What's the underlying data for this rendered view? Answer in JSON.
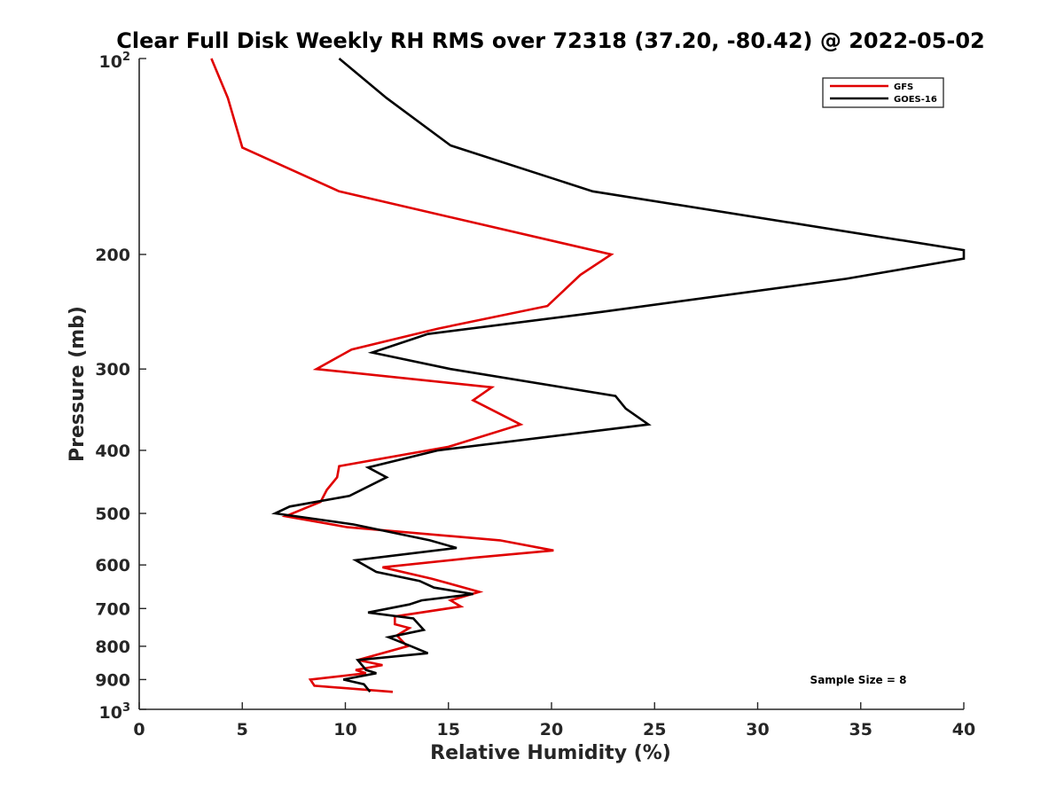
{
  "chart_data": {
    "type": "line",
    "title": "Clear Full Disk Weekly RH RMS over 72318 (37.20, -80.42) @ 2022-05-02",
    "xlabel": "Relative Humidity (%)",
    "ylabel": "Pressure (mb)",
    "xlim": [
      0,
      40
    ],
    "ylim": [
      100,
      1000
    ],
    "yscale": "log",
    "y_reversed": true,
    "grid": false,
    "legend_position": "top-right",
    "xticks": [
      0,
      5,
      10,
      15,
      20,
      25,
      30,
      35,
      40
    ],
    "xtick_labels": [
      "0",
      "5",
      "10",
      "15",
      "20",
      "25",
      "30",
      "35",
      "40"
    ],
    "yticks": [
      200,
      300,
      400,
      500,
      600,
      700,
      800,
      900
    ],
    "ytick_labels": [
      "200",
      "300",
      "400",
      "500",
      "600",
      "700",
      "800",
      "900"
    ],
    "ylim_labels": {
      "top": {
        "base": "10",
        "exp": "2"
      },
      "bottom": {
        "base": "10",
        "exp": "3"
      }
    },
    "annotation": "Sample Size = 8",
    "series": [
      {
        "name": "GFS",
        "color": "#e00000",
        "points": [
          [
            3.5,
            100
          ],
          [
            4.3,
            115
          ],
          [
            5.0,
            137
          ],
          [
            9.7,
            160
          ],
          [
            22.9,
            200
          ],
          [
            21.4,
            215
          ],
          [
            19.8,
            240
          ],
          [
            14.5,
            260
          ],
          [
            10.3,
            280
          ],
          [
            8.6,
            300
          ],
          [
            17.1,
            320
          ],
          [
            16.2,
            335
          ],
          [
            18.5,
            365
          ],
          [
            15.0,
            395
          ],
          [
            9.7,
            423
          ],
          [
            9.6,
            440
          ],
          [
            9.1,
            460
          ],
          [
            8.8,
            480
          ],
          [
            7.1,
            505
          ],
          [
            10.1,
            525
          ],
          [
            17.5,
            550
          ],
          [
            20.1,
            570
          ],
          [
            16.2,
            585
          ],
          [
            11.8,
            605
          ],
          [
            14.2,
            630
          ],
          [
            16.5,
            660
          ],
          [
            15.1,
            680
          ],
          [
            15.6,
            695
          ],
          [
            12.4,
            720
          ],
          [
            12.4,
            740
          ],
          [
            13.1,
            750
          ],
          [
            12.5,
            770
          ],
          [
            13.0,
            800
          ],
          [
            10.6,
            840
          ],
          [
            11.8,
            855
          ],
          [
            10.5,
            870
          ],
          [
            11.0,
            880
          ],
          [
            8.3,
            900
          ],
          [
            8.5,
            920
          ],
          [
            12.3,
            940
          ]
        ]
      },
      {
        "name": "GOES-16",
        "color": "#000000",
        "points": [
          [
            9.7,
            100
          ],
          [
            12.0,
            115
          ],
          [
            15.1,
            136
          ],
          [
            22.0,
            160
          ],
          [
            40.0,
            197
          ],
          [
            40.0,
            203
          ],
          [
            34.3,
            218
          ],
          [
            22.5,
            245
          ],
          [
            14.0,
            265
          ],
          [
            11.3,
            283
          ],
          [
            15.1,
            300
          ],
          [
            23.1,
            330
          ],
          [
            23.6,
            345
          ],
          [
            24.7,
            365
          ],
          [
            14.5,
            400
          ],
          [
            11.1,
            425
          ],
          [
            12.0,
            440
          ],
          [
            10.2,
            470
          ],
          [
            7.3,
            488
          ],
          [
            6.6,
            500
          ],
          [
            10.4,
            520
          ],
          [
            14.1,
            550
          ],
          [
            15.4,
            565
          ],
          [
            10.5,
            590
          ],
          [
            11.5,
            615
          ],
          [
            13.6,
            635
          ],
          [
            14.3,
            650
          ],
          [
            16.2,
            665
          ],
          [
            13.7,
            680
          ],
          [
            13.1,
            690
          ],
          [
            11.1,
            710
          ],
          [
            13.3,
            725
          ],
          [
            13.8,
            755
          ],
          [
            12.1,
            775
          ],
          [
            13.2,
            800
          ],
          [
            14.0,
            820
          ],
          [
            10.6,
            840
          ],
          [
            11.0,
            870
          ],
          [
            11.5,
            880
          ],
          [
            9.9,
            900
          ],
          [
            10.9,
            915
          ],
          [
            11.2,
            940
          ]
        ]
      }
    ]
  }
}
